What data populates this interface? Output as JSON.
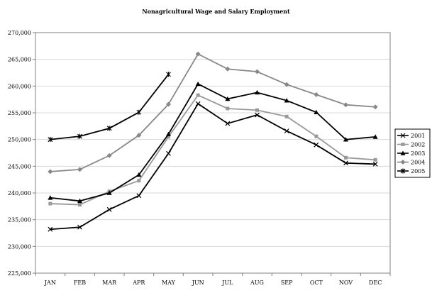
{
  "chart_data": {
    "type": "line",
    "title": "Nonagricultural Wage and Salary Employment",
    "xlabel": "",
    "ylabel": "",
    "categories": [
      "JAN",
      "FEB",
      "MAR",
      "APR",
      "MAY",
      "JUN",
      "JUL",
      "AUG",
      "SEP",
      "OCT",
      "NOV",
      "DEC"
    ],
    "ylim": [
      225000,
      270000
    ],
    "yticks": [
      225000,
      230000,
      235000,
      240000,
      245000,
      250000,
      255000,
      260000,
      265000,
      270000
    ],
    "ytick_labels": [
      "225,000",
      "230,000",
      "235,000",
      "240,000",
      "245,000",
      "250,000",
      "255,000",
      "260,000",
      "265,000",
      "270,000"
    ],
    "grid": true,
    "legend_position": "right",
    "series": [
      {
        "name": "2001",
        "color": "#000000",
        "marker": "x",
        "values": [
          233200,
          233600,
          236900,
          239500,
          247400,
          256700,
          253000,
          254600,
          251600,
          249000,
          245600,
          245400
        ]
      },
      {
        "name": "2002",
        "color": "#999999",
        "marker": "square",
        "values": [
          238000,
          237800,
          240300,
          242300,
          250500,
          258300,
          255800,
          255500,
          254300,
          250600,
          246600,
          246200
        ]
      },
      {
        "name": "2003",
        "color": "#000000",
        "marker": "triangle",
        "values": [
          239100,
          238500,
          240000,
          243400,
          251000,
          260400,
          257600,
          258800,
          257300,
          255100,
          250000,
          250500
        ]
      },
      {
        "name": "2004",
        "color": "#888888",
        "marker": "diamond",
        "values": [
          244000,
          244400,
          247000,
          250800,
          256600,
          266000,
          263200,
          262700,
          260300,
          258400,
          256500,
          256100
        ]
      },
      {
        "name": "2005",
        "color": "#000000",
        "marker": "star",
        "values": [
          250000,
          250600,
          252100,
          255100,
          262200,
          null,
          null,
          null,
          null,
          null,
          null,
          null
        ]
      }
    ]
  }
}
